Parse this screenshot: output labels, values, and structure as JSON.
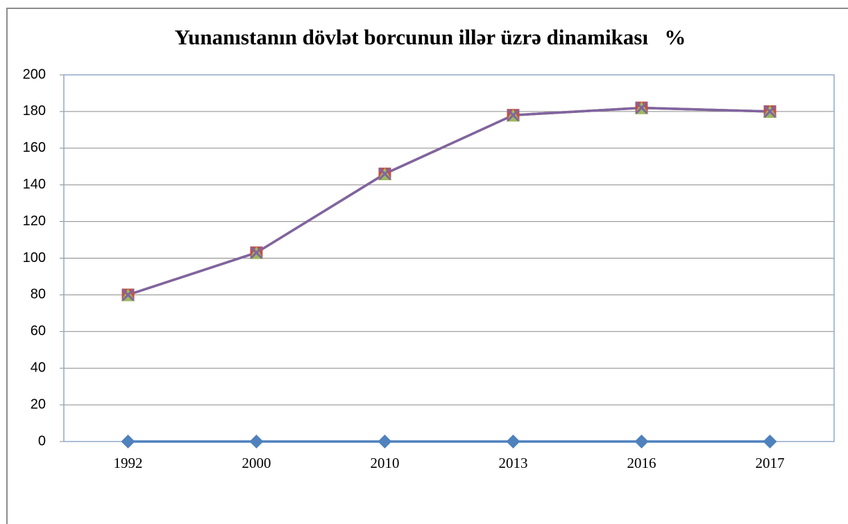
{
  "chart_data": {
    "type": "line",
    "title": "Yunanıstanın dövlət borcunun illər üzrə dinamikası   %",
    "categories": [
      "1992",
      "2000",
      "2010",
      "2013",
      "2016",
      "2017"
    ],
    "series": [
      {
        "color": "#4f81bd",
        "marker": "diamond",
        "values": [
          0,
          0,
          0,
          0,
          0,
          0
        ]
      },
      {
        "color": "#c0504d",
        "marker": "square",
        "values": [
          80,
          103,
          146,
          178,
          182,
          180
        ]
      },
      {
        "color": "#9bbb59",
        "marker": "triangle",
        "values": [
          80,
          103,
          146,
          178,
          182,
          180
        ]
      },
      {
        "color": "#8064a2",
        "marker": "x",
        "values": [
          80,
          103,
          146,
          178,
          182,
          180
        ]
      }
    ],
    "ylim": [
      0,
      200
    ],
    "yticks": [
      0,
      20,
      40,
      60,
      80,
      100,
      120,
      140,
      160,
      180,
      200
    ],
    "grid": true
  }
}
